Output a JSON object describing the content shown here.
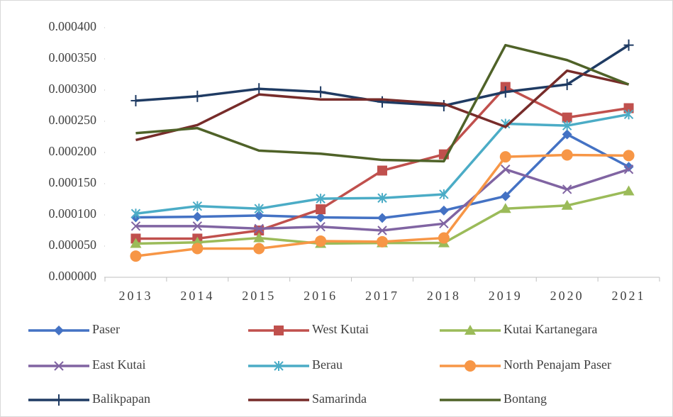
{
  "chart_data": {
    "type": "line",
    "categories": [
      "2013",
      "2014",
      "2015",
      "2016",
      "2017",
      "2018",
      "2019",
      "2020",
      "2021"
    ],
    "ylim": [
      0,
      0.0004
    ],
    "yticks": [
      {
        "value": 0,
        "label": "0.000000"
      },
      {
        "value": 5e-05,
        "label": "0.000050"
      },
      {
        "value": 0.0001,
        "label": "0.000100"
      },
      {
        "value": 0.00015,
        "label": "0.000150"
      },
      {
        "value": 0.0002,
        "label": "0.000200"
      },
      {
        "value": 0.00025,
        "label": "0.000250"
      },
      {
        "value": 0.0003,
        "label": "0.000300"
      },
      {
        "value": 0.00035,
        "label": "0.000350"
      },
      {
        "value": 0.0004,
        "label": "0.000400"
      }
    ],
    "grid": false,
    "legend": "bottom",
    "series": [
      {
        "name": "Paser",
        "color": "#4472c4",
        "marker": "diamond",
        "values": [
          9.6e-05,
          9.7e-05,
          9.9e-05,
          9.6e-05,
          9.5e-05,
          0.000107,
          0.00013,
          0.000229,
          0.000177
        ]
      },
      {
        "name": "West Kutai",
        "color": "#c0504d",
        "marker": "square",
        "values": [
          6.2e-05,
          6.2e-05,
          7.5e-05,
          0.000109,
          0.000171,
          0.000197,
          0.000305,
          0.000256,
          0.000271
        ]
      },
      {
        "name": "Kutai Kartanegara",
        "color": "#9bbb59",
        "marker": "triangle",
        "values": [
          5.4e-05,
          5.6e-05,
          6.3e-05,
          5.4e-05,
          5.5e-05,
          5.5e-05,
          0.00011,
          0.000115,
          0.000138
        ]
      },
      {
        "name": "East Kutai",
        "color": "#8064a2",
        "marker": "x",
        "values": [
          8.2e-05,
          8.2e-05,
          7.8e-05,
          8.1e-05,
          7.5e-05,
          8.6e-05,
          0.000173,
          0.000141,
          0.000173
        ]
      },
      {
        "name": "Berau",
        "color": "#4bacc6",
        "marker": "asterisk",
        "values": [
          0.000102,
          0.000114,
          0.00011,
          0.000126,
          0.000127,
          0.000133,
          0.000246,
          0.000243,
          0.000261
        ]
      },
      {
        "name": "North Penajam Paser",
        "color": "#f79646",
        "marker": "circle",
        "values": [
          3.4e-05,
          4.6e-05,
          4.6e-05,
          5.8e-05,
          5.7e-05,
          6.3e-05,
          0.000193,
          0.000196,
          0.000195
        ]
      },
      {
        "name": "Balikpapan",
        "color": "#1f3b63",
        "marker": "plus",
        "values": [
          0.000283,
          0.00029,
          0.000302,
          0.000297,
          0.000281,
          0.000275,
          0.000297,
          0.000309,
          0.000372
        ]
      },
      {
        "name": "Samarinda",
        "color": "#772c2a",
        "marker": "none",
        "values": [
          0.00022,
          0.000244,
          0.000293,
          0.000285,
          0.000285,
          0.000278,
          0.000241,
          0.000331,
          0.000309
        ]
      },
      {
        "name": "Bontang",
        "color": "#4f6228",
        "marker": "none",
        "values": [
          0.000231,
          0.000239,
          0.000203,
          0.000198,
          0.000188,
          0.000186,
          0.000372,
          0.000348,
          0.000309
        ]
      }
    ]
  }
}
